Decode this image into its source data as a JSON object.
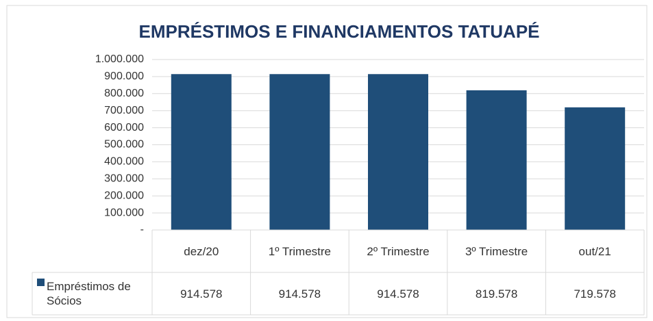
{
  "chart_data": {
    "type": "bar",
    "title": "EMPRÉSTIMOS E FINANCIAMENTOS TATUAPÉ",
    "categories": [
      "dez/20",
      "1º Trimestre",
      "2º Trimestre",
      "3º Trimestre",
      "out/21"
    ],
    "series": [
      {
        "name": "Empréstimos de Sócios",
        "color": "#1f4e79",
        "values": [
          914578,
          914578,
          914578,
          819578,
          719578
        ],
        "value_labels": [
          "914.578",
          "914.578",
          "914.578",
          "819.578",
          "719.578"
        ]
      }
    ],
    "ylim": [
      0,
      1000000
    ],
    "yticks": [
      {
        "value": 0,
        "label": "-"
      },
      {
        "value": 100000,
        "label": "100.000"
      },
      {
        "value": 200000,
        "label": "200.000"
      },
      {
        "value": 300000,
        "label": "300.000"
      },
      {
        "value": 400000,
        "label": "400.000"
      },
      {
        "value": 500000,
        "label": "500.000"
      },
      {
        "value": 600000,
        "label": "600.000"
      },
      {
        "value": 700000,
        "label": "700.000"
      },
      {
        "value": 800000,
        "label": "800.000"
      },
      {
        "value": 900000,
        "label": "900.000"
      },
      {
        "value": 1000000,
        "label": "1.000.000"
      }
    ],
    "grid": true,
    "data_table": true
  }
}
